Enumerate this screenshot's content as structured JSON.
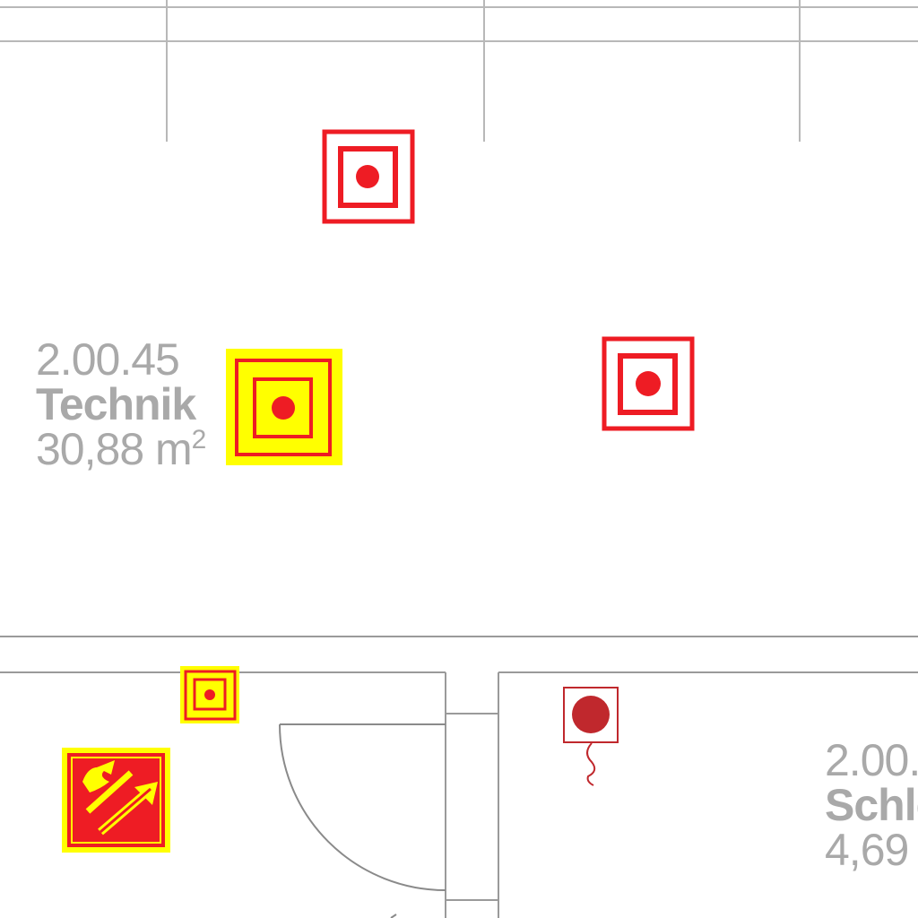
{
  "colors": {
    "wall": "#9a9a9a",
    "wall_light": "#b8b8b8",
    "symbol_red": "#ee1c24",
    "symbol_yellow": "#ffff00",
    "pull_station": "#c0282d",
    "label": "#a9a9a9"
  },
  "rooms": [
    {
      "number": "2.00.45",
      "name": "Technik",
      "area": "30,88 m",
      "area_unit_sup": "2"
    },
    {
      "number": "2.00.",
      "name": "Schle",
      "area": "4,69"
    }
  ],
  "symbols": [
    {
      "type": "smoke-detector-icon"
    },
    {
      "type": "smoke-detector-icon"
    },
    {
      "type": "smoke-detector-highlighted-icon"
    },
    {
      "type": "smoke-detector-small-highlighted-icon"
    },
    {
      "type": "fire-extinguisher-sign-icon"
    },
    {
      "type": "manual-call-point-icon"
    }
  ]
}
